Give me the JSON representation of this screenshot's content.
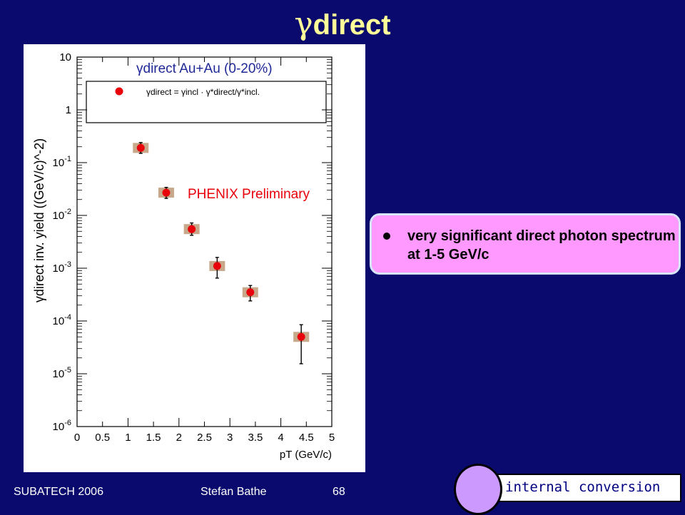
{
  "slide": {
    "title_symbol": "γ",
    "title_text": "direct"
  },
  "bullet": {
    "text": "very significant direct photon spectrum at 1-5 GeV/c"
  },
  "footer": {
    "conference": "SUBATECH 2006",
    "author": "Stefan Bathe",
    "page": "68"
  },
  "button": {
    "internal_conversion": "internal conversion"
  },
  "chart_data": {
    "type": "scatter",
    "title": "γdirect Au+Au (0-20%)",
    "legend_entry": "γdirect = γincl · γ*direct/γ*incl.",
    "annotation": "PHENIX Preliminary",
    "xlabel": "pT (GeV/c)",
    "ylabel": "γdirect inv. yield ((GeV/c)^-2)",
    "xlim": [
      0,
      5
    ],
    "ylim": [
      1e-06,
      10
    ],
    "yscale": "log",
    "x_ticks": [
      "0",
      "0.5",
      "1",
      "1.5",
      "2",
      "2.5",
      "3",
      "3.5",
      "4",
      "4.5",
      "5"
    ],
    "y_ticks": [
      "10^-6",
      "10^-5",
      "10^-4",
      "10^-3",
      "10^-2",
      "10^-1",
      "1",
      "10"
    ],
    "colors": {
      "marker": "#e8000b",
      "syst_box": "#c8a88a",
      "annotation": "#e8000b",
      "title": "#1e2896"
    },
    "points": [
      {
        "x": 1.25,
        "y": 0.19,
        "y_low": 0.15,
        "y_high": 0.24
      },
      {
        "x": 1.75,
        "y": 0.027,
        "y_low": 0.021,
        "y_high": 0.034
      },
      {
        "x": 2.25,
        "y": 0.0055,
        "y_low": 0.0042,
        "y_high": 0.0072
      },
      {
        "x": 2.75,
        "y": 0.0011,
        "y_low": 0.00065,
        "y_high": 0.0016
      },
      {
        "x": 3.4,
        "y": 0.00035,
        "y_low": 0.00024,
        "y_high": 0.00047
      },
      {
        "x": 4.4,
        "y": 5e-05,
        "y_low": 1.55e-05,
        "y_high": 8.5e-05
      }
    ]
  }
}
